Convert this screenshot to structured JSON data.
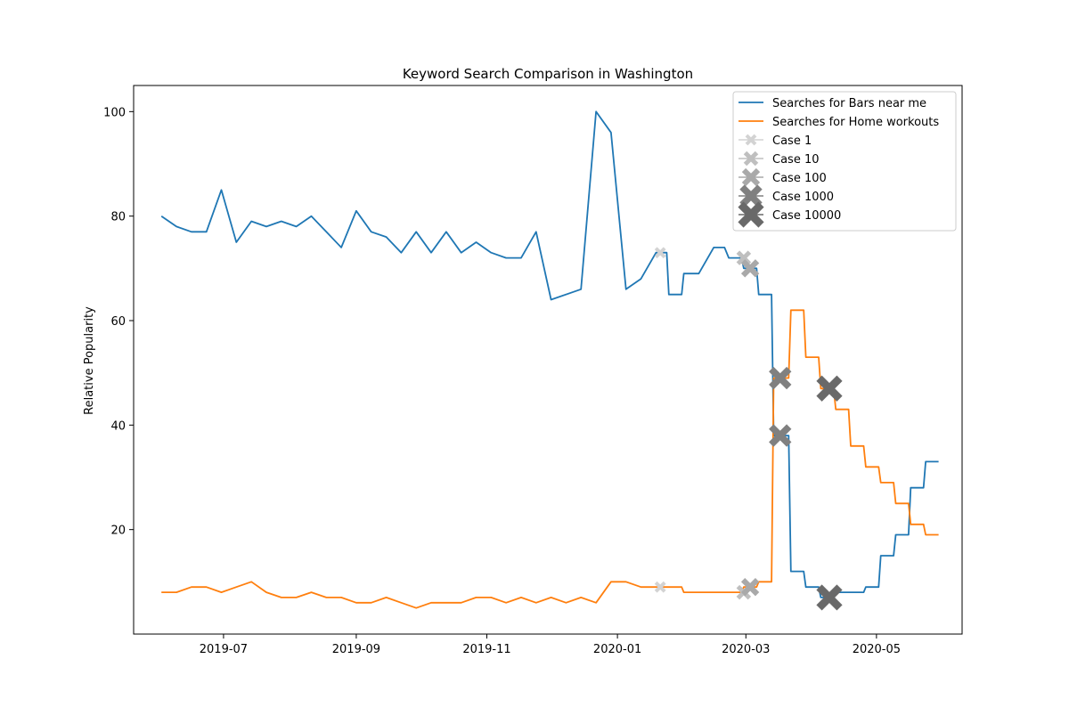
{
  "chart_data": {
    "type": "line",
    "title": "Keyword Search Comparison in Washington",
    "xlabel": "",
    "ylabel": "Relative Popularity",
    "x_ticks": [
      "2019-07",
      "2019-09",
      "2019-11",
      "2020-01",
      "2020-03",
      "2020-05"
    ],
    "y_ticks": [
      "20",
      "40",
      "60",
      "80",
      "100"
    ],
    "xlim": [
      "2019-05-20",
      "2020-06-10"
    ],
    "ylim": [
      0,
      105
    ],
    "grid": false,
    "legend_position": "top-right",
    "series": [
      {
        "name": "Searches for Bars near me",
        "color": "#1f77b4",
        "points": [
          [
            "2019-06-02",
            80
          ],
          [
            "2019-06-09",
            78
          ],
          [
            "2019-06-16",
            77
          ],
          [
            "2019-06-23",
            77
          ],
          [
            "2019-06-30",
            85
          ],
          [
            "2019-07-07",
            75
          ],
          [
            "2019-07-14",
            79
          ],
          [
            "2019-07-21",
            78
          ],
          [
            "2019-07-28",
            79
          ],
          [
            "2019-08-04",
            78
          ],
          [
            "2019-08-11",
            80
          ],
          [
            "2019-08-18",
            77
          ],
          [
            "2019-08-25",
            74
          ],
          [
            "2019-09-01",
            81
          ],
          [
            "2019-09-08",
            77
          ],
          [
            "2019-09-15",
            76
          ],
          [
            "2019-09-22",
            73
          ],
          [
            "2019-09-29",
            77
          ],
          [
            "2019-10-06",
            73
          ],
          [
            "2019-10-13",
            77
          ],
          [
            "2019-10-20",
            73
          ],
          [
            "2019-10-27",
            75
          ],
          [
            "2019-11-03",
            73
          ],
          [
            "2019-11-10",
            72
          ],
          [
            "2019-11-17",
            72
          ],
          [
            "2019-11-24",
            77
          ],
          [
            "2019-12-01",
            64
          ],
          [
            "2019-12-15",
            66
          ],
          [
            "2019-12-22",
            100
          ],
          [
            "2019-12-29",
            96
          ],
          [
            "2020-01-05",
            66
          ],
          [
            "2020-01-12",
            68
          ],
          [
            "2020-01-19",
            73
          ],
          [
            "2020-01-24",
            73
          ],
          [
            "2020-01-25",
            65
          ],
          [
            "2020-01-31",
            65
          ],
          [
            "2020-02-01",
            69
          ],
          [
            "2020-02-07",
            69
          ],
          [
            "2020-02-08",
            69
          ],
          [
            "2020-02-15",
            74
          ],
          [
            "2020-02-20",
            74
          ],
          [
            "2020-02-22",
            72
          ],
          [
            "2020-02-28",
            72
          ],
          [
            "2020-02-29",
            70
          ],
          [
            "2020-03-06",
            70
          ],
          [
            "2020-03-07",
            65
          ],
          [
            "2020-03-13",
            65
          ],
          [
            "2020-03-14",
            38
          ],
          [
            "2020-03-21",
            38
          ],
          [
            "2020-03-22",
            12
          ],
          [
            "2020-03-28",
            12
          ],
          [
            "2020-03-29",
            9
          ],
          [
            "2020-04-04",
            9
          ],
          [
            "2020-04-05",
            7
          ],
          [
            "2020-04-11",
            7
          ],
          [
            "2020-04-12",
            8
          ],
          [
            "2020-04-18",
            8
          ],
          [
            "2020-04-19",
            8
          ],
          [
            "2020-04-25",
            8
          ],
          [
            "2020-04-26",
            9
          ],
          [
            "2020-05-02",
            9
          ],
          [
            "2020-05-03",
            15
          ],
          [
            "2020-05-09",
            15
          ],
          [
            "2020-05-10",
            19
          ],
          [
            "2020-05-16",
            19
          ],
          [
            "2020-05-17",
            28
          ],
          [
            "2020-05-23",
            28
          ],
          [
            "2020-05-24",
            33
          ],
          [
            "2020-05-30",
            33
          ]
        ]
      },
      {
        "name": "Searches for Home workouts",
        "color": "#ff7f0e",
        "points": [
          [
            "2019-06-02",
            8
          ],
          [
            "2019-06-09",
            8
          ],
          [
            "2019-06-16",
            9
          ],
          [
            "2019-06-23",
            9
          ],
          [
            "2019-06-30",
            8
          ],
          [
            "2019-07-07",
            9
          ],
          [
            "2019-07-14",
            10
          ],
          [
            "2019-07-21",
            8
          ],
          [
            "2019-07-28",
            7
          ],
          [
            "2019-08-04",
            7
          ],
          [
            "2019-08-11",
            8
          ],
          [
            "2019-08-18",
            7
          ],
          [
            "2019-08-25",
            7
          ],
          [
            "2019-09-01",
            6
          ],
          [
            "2019-09-08",
            6
          ],
          [
            "2019-09-15",
            7
          ],
          [
            "2019-09-22",
            6
          ],
          [
            "2019-09-29",
            5
          ],
          [
            "2019-10-06",
            6
          ],
          [
            "2019-10-13",
            6
          ],
          [
            "2019-10-20",
            6
          ],
          [
            "2019-10-27",
            7
          ],
          [
            "2019-11-03",
            7
          ],
          [
            "2019-11-10",
            6
          ],
          [
            "2019-11-17",
            7
          ],
          [
            "2019-11-24",
            6
          ],
          [
            "2019-12-01",
            7
          ],
          [
            "2019-12-08",
            6
          ],
          [
            "2019-12-15",
            7
          ],
          [
            "2019-12-22",
            6
          ],
          [
            "2019-12-29",
            10
          ],
          [
            "2020-01-05",
            10
          ],
          [
            "2020-01-12",
            9
          ],
          [
            "2020-01-19",
            9
          ],
          [
            "2020-01-31",
            9
          ],
          [
            "2020-02-01",
            8
          ],
          [
            "2020-02-28",
            8
          ],
          [
            "2020-02-29",
            9
          ],
          [
            "2020-03-06",
            9
          ],
          [
            "2020-03-07",
            10
          ],
          [
            "2020-03-13",
            10
          ],
          [
            "2020-03-14",
            49
          ],
          [
            "2020-03-21",
            49
          ],
          [
            "2020-03-22",
            62
          ],
          [
            "2020-03-28",
            62
          ],
          [
            "2020-03-29",
            53
          ],
          [
            "2020-04-04",
            53
          ],
          [
            "2020-04-05",
            47
          ],
          [
            "2020-04-11",
            47
          ],
          [
            "2020-04-12",
            43
          ],
          [
            "2020-04-18",
            43
          ],
          [
            "2020-04-19",
            36
          ],
          [
            "2020-04-25",
            36
          ],
          [
            "2020-04-26",
            32
          ],
          [
            "2020-05-02",
            32
          ],
          [
            "2020-05-03",
            29
          ],
          [
            "2020-05-09",
            29
          ],
          [
            "2020-05-10",
            25
          ],
          [
            "2020-05-16",
            25
          ],
          [
            "2020-05-17",
            21
          ],
          [
            "2020-05-23",
            21
          ],
          [
            "2020-05-24",
            19
          ],
          [
            "2020-05-30",
            19
          ]
        ]
      }
    ],
    "case_legend": [
      {
        "name": "Case 1",
        "color": "#d3d3d3"
      },
      {
        "name": "Case 10",
        "color": "#bfbfbf"
      },
      {
        "name": "Case 100",
        "color": "#a9a9a9"
      },
      {
        "name": "Case 1000",
        "color": "#808080"
      },
      {
        "name": "Case 10000",
        "color": "#696969"
      }
    ],
    "case_markers": [
      {
        "date": "2020-01-21",
        "y": 73,
        "level": 0
      },
      {
        "date": "2020-01-21",
        "y": 9,
        "level": 0
      },
      {
        "date": "2020-02-29",
        "y": 72,
        "level": 1
      },
      {
        "date": "2020-02-29",
        "y": 8,
        "level": 1
      },
      {
        "date": "2020-03-03",
        "y": 70,
        "level": 2
      },
      {
        "date": "2020-03-03",
        "y": 9,
        "level": 2
      },
      {
        "date": "2020-03-17",
        "y": 49,
        "level": 3
      },
      {
        "date": "2020-03-17",
        "y": 38,
        "level": 3
      },
      {
        "date": "2020-04-09",
        "y": 47,
        "level": 4
      },
      {
        "date": "2020-04-09",
        "y": 7,
        "level": 4
      }
    ]
  }
}
